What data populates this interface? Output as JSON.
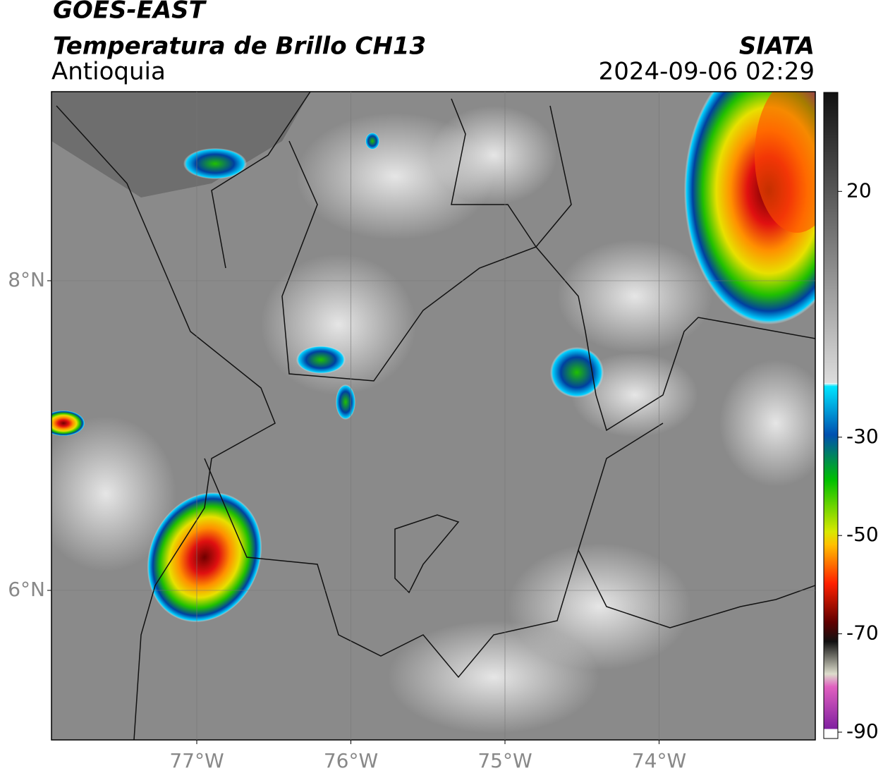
{
  "header": {
    "title": "GOES-EAST",
    "subtitle": "Temperatura de Brillo CH13",
    "region": "Antioquia",
    "source": "SIATA",
    "datetime": "2024-09-06 02:29"
  },
  "map": {
    "xticks": [
      {
        "value": -77,
        "label": "77°W"
      },
      {
        "value": -76,
        "label": "76°W"
      },
      {
        "value": -75,
        "label": "75°W"
      },
      {
        "value": -74,
        "label": "74°W"
      }
    ],
    "yticks": [
      {
        "value": 8,
        "label": "8°N"
      },
      {
        "value": 6,
        "label": "6°N"
      }
    ]
  },
  "colorbar": {
    "ticks": [
      20,
      -30,
      -50,
      -70,
      -90
    ]
  }
}
